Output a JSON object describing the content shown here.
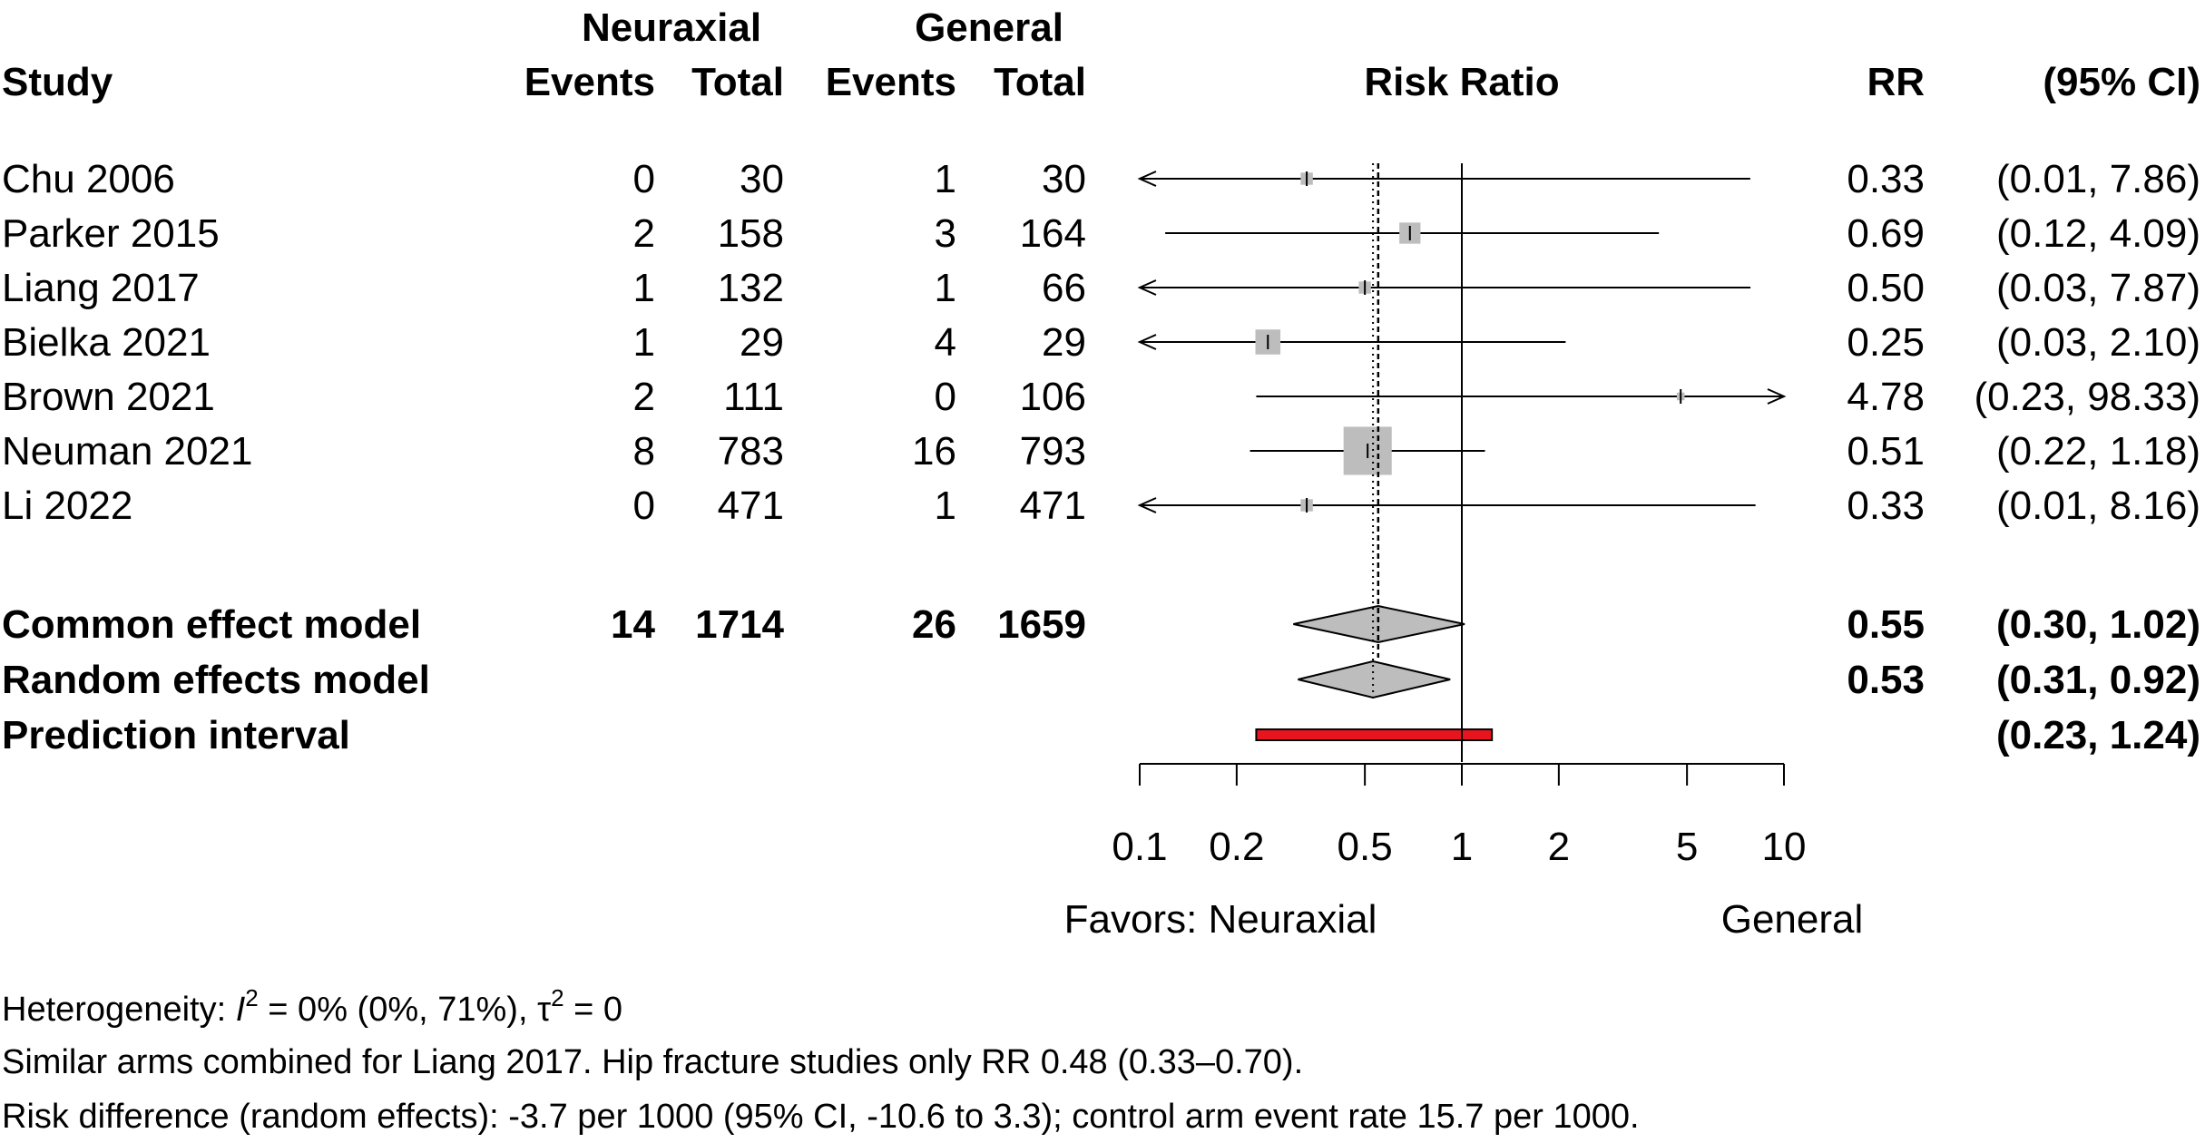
{
  "headers": {
    "study": "Study",
    "group1": "Neuraxial",
    "group2": "General",
    "events": "Events",
    "total": "Total",
    "plot": "Risk Ratio",
    "rr": "RR",
    "ci": "(95% CI)"
  },
  "chart_data": {
    "type": "forest",
    "xlabel_left": "Favors: Neuraxial",
    "xlabel_right": "General",
    "x_scale": "log",
    "xlim": [
      0.1,
      10
    ],
    "x_ticks": [
      0.1,
      0.2,
      0.5,
      1,
      2,
      5,
      10
    ],
    "x_tick_labels": [
      "0.1",
      "0.2",
      "0.5",
      "1",
      "2",
      "5",
      "10"
    ],
    "null_line": 1,
    "studies": [
      {
        "study": "Chu 2006",
        "events1": "0",
        "total1": "30",
        "events2": "1",
        "total2": "30",
        "rr": 0.33,
        "lower": 0.01,
        "upper": 7.86,
        "rr_text": "0.33",
        "ci_text": "(0.01,  7.86)",
        "weight": 0.025
      },
      {
        "study": "Parker 2015",
        "events1": "2",
        "total1": "158",
        "events2": "3",
        "total2": "164",
        "rr": 0.69,
        "lower": 0.12,
        "upper": 4.09,
        "rr_text": "0.69",
        "ci_text": "(0.12,  4.09)",
        "weight": 0.075
      },
      {
        "study": "Liang 2017",
        "events1": "1",
        "total1": "132",
        "events2": "1",
        "total2": "66",
        "rr": 0.5,
        "lower": 0.03,
        "upper": 7.87,
        "rr_text": "0.50",
        "ci_text": "(0.03,  7.87)",
        "weight": 0.025
      },
      {
        "study": "Bielka 2021",
        "events1": "1",
        "total1": "29",
        "events2": "4",
        "total2": "29",
        "rr": 0.25,
        "lower": 0.03,
        "upper": 2.1,
        "rr_text": "0.25",
        "ci_text": "(0.03,  2.10)",
        "weight": 0.105
      },
      {
        "study": "Brown 2021",
        "events1": "2",
        "total1": "111",
        "events2": "0",
        "total2": "106",
        "rr": 4.78,
        "lower": 0.23,
        "upper": 98.33,
        "rr_text": "4.78",
        "ci_text": "(0.23, 98.33)",
        "weight": 0.01
      },
      {
        "study": "Neuman 2021",
        "events1": "8",
        "total1": "783",
        "events2": "16",
        "total2": "793",
        "rr": 0.51,
        "lower": 0.22,
        "upper": 1.18,
        "rr_text": "0.51",
        "ci_text": "(0.22,  1.18)",
        "weight": 0.39
      },
      {
        "study": "Li 2022",
        "events1": "0",
        "total1": "471",
        "events2": "1",
        "total2": "471",
        "rr": 0.33,
        "lower": 0.01,
        "upper": 8.16,
        "rr_text": "0.33",
        "ci_text": "(0.01,  8.16)",
        "weight": 0.025
      }
    ],
    "pooled": [
      {
        "label": "Common effect model",
        "events1": "14",
        "total1": "1714",
        "events2": "26",
        "total2": "1659",
        "rr": 0.55,
        "lower": 0.3,
        "upper": 1.02,
        "rr_text": "0.55",
        "ci_text": "(0.30,  1.02)"
      },
      {
        "label": "Random effects model",
        "events1": "",
        "total1": "",
        "events2": "",
        "total2": "",
        "rr": 0.53,
        "lower": 0.31,
        "upper": 0.92,
        "rr_text": "0.53",
        "ci_text": "(0.31,  0.92)"
      }
    ],
    "prediction_interval": {
      "label": "Prediction interval",
      "lower": 0.23,
      "upper": 1.24,
      "ci_text": "(0.23,  1.24)",
      "color": "#e8141e"
    },
    "colors": {
      "square": "#bdbdbd",
      "diamond": "#bdbdbd",
      "line": "#000000"
    }
  },
  "notes": {
    "heterogeneity_prefix": "Heterogeneity: ",
    "i2_symbol": "I",
    "sup": "2",
    "i2_value": " = 0% (0%, 71%), ",
    "tau_symbol": "τ",
    "tau_value": " = 0",
    "line2": "Similar arms combined for Liang 2017. Hip fracture studies only RR 0.48 (0.33–0.70).",
    "line3": "Risk difference (random effects): -3.7 per 1000 (95% CI, -10.6 to 3.3); control arm event rate 15.7 per 1000."
  }
}
